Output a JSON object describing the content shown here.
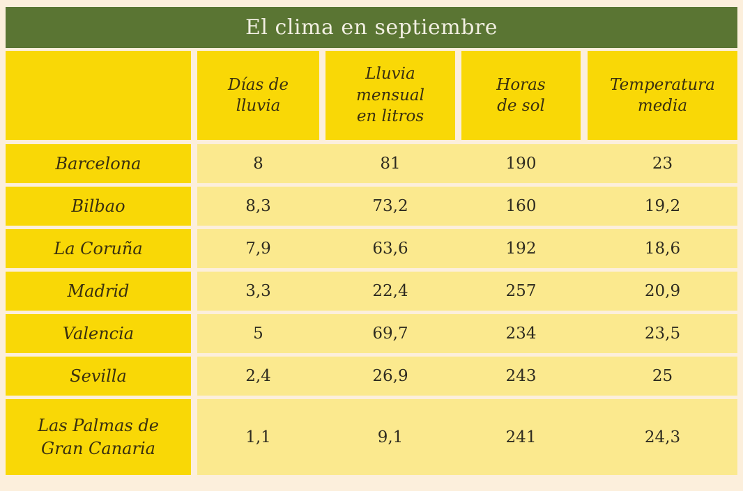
{
  "table": {
    "title": "El clima en septiembre",
    "headers": [
      "",
      "Días de\nlluvia",
      "Lluvia\nmensual\nen litros",
      "Horas\nde sol",
      "Temperatura\nmedia"
    ],
    "rows": [
      {
        "city": "Barcelona",
        "values": [
          "8",
          "81",
          "190",
          "23"
        ]
      },
      {
        "city": "Bilbao",
        "values": [
          "8,3",
          "73,2",
          "160",
          "19,2"
        ]
      },
      {
        "city": "La Coruña",
        "values": [
          "7,9",
          "63,6",
          "192",
          "18,6"
        ]
      },
      {
        "city": "Madrid",
        "values": [
          "3,3",
          "22,4",
          "257",
          "20,9"
        ]
      },
      {
        "city": "Valencia",
        "values": [
          "5",
          "69,7",
          "234",
          "23,5"
        ]
      },
      {
        "city": "Sevilla",
        "values": [
          "2,4",
          "26,9",
          "243",
          "25"
        ]
      },
      {
        "city": "Las Palmas de\nGran Canaria",
        "values": [
          "1,1",
          "9,1",
          "241",
          "24,3"
        ]
      }
    ],
    "colors": {
      "title_bar": "#5a7533",
      "title_text": "#f2efe2",
      "header_cell_yellow": "#f9d806",
      "city_cell_yellow": "#f9d806",
      "data_strip_yellow": "#fbe98e",
      "page_background": "#fcefdc",
      "header_text": "#3a300f",
      "value_text": "#2e2b20"
    }
  },
  "chart_data": {
    "type": "table",
    "title": "El clima en septiembre",
    "columns": [
      "",
      "Días de lluvia",
      "Lluvia mensual en litros",
      "Horas de sol",
      "Temperatura media"
    ],
    "rows": [
      [
        "Barcelona",
        8,
        81,
        190,
        23
      ],
      [
        "Bilbao",
        8.3,
        73.2,
        160,
        19.2
      ],
      [
        "La Coruña",
        7.9,
        63.6,
        192,
        18.6
      ],
      [
        "Madrid",
        3.3,
        22.4,
        257,
        20.9
      ],
      [
        "Valencia",
        5,
        69.7,
        234,
        23.5
      ],
      [
        "Sevilla",
        2.4,
        26.9,
        243,
        25
      ],
      [
        "Las Palmas de Gran Canaria",
        1.1,
        9.1,
        241,
        24.3
      ]
    ]
  }
}
